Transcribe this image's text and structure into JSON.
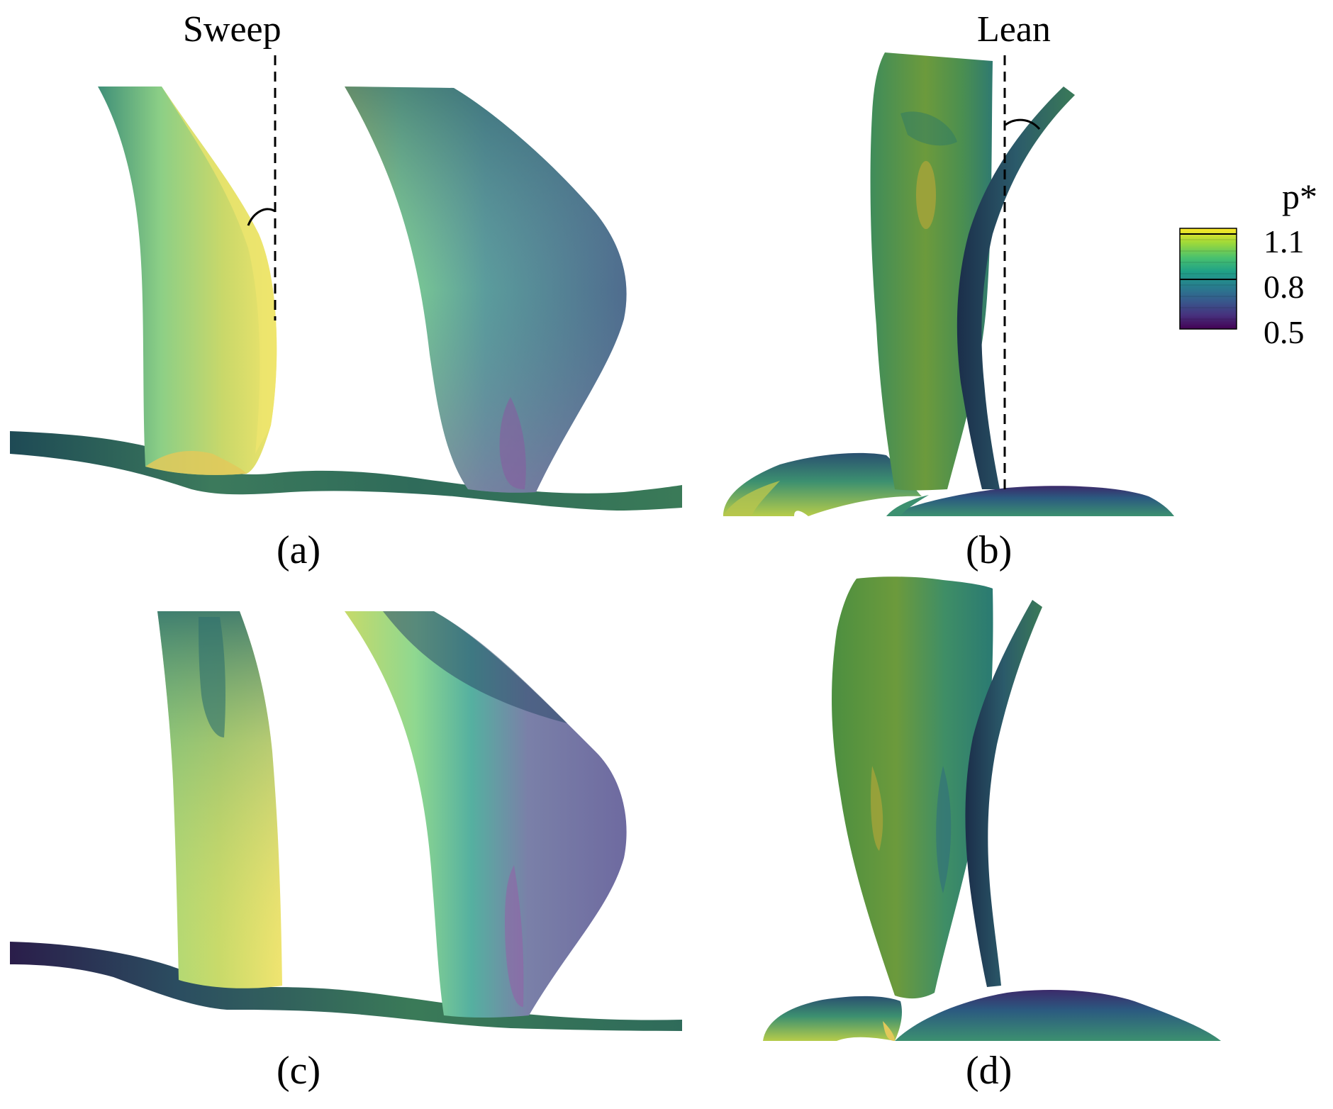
{
  "annotations": {
    "sweep": "Sweep",
    "lean": "Lean"
  },
  "panels": [
    {
      "id": "a",
      "label": "(a)"
    },
    {
      "id": "b",
      "label": "(b)"
    },
    {
      "id": "c",
      "label": "(c)"
    },
    {
      "id": "d",
      "label": "(d)"
    }
  ],
  "colorbar": {
    "title": "p*",
    "ticks": [
      "1.1",
      "0.8",
      "0.5"
    ],
    "range": [
      0.5,
      1.1
    ],
    "colormap": [
      "#440154",
      "#46327e",
      "#365c8d",
      "#277f8e",
      "#1fa187",
      "#4ac16d",
      "#a0da39",
      "#fde725"
    ]
  },
  "colors": {
    "yellow": "#e8e06a",
    "yellow_green": "#b7d266",
    "light_green": "#8fd08a",
    "green": "#55a86a",
    "teal": "#3f9a86",
    "dark_teal": "#2e6f6e",
    "slate": "#5d7f98",
    "purple": "#7e6aa0",
    "dark": "#1e3a4a"
  }
}
